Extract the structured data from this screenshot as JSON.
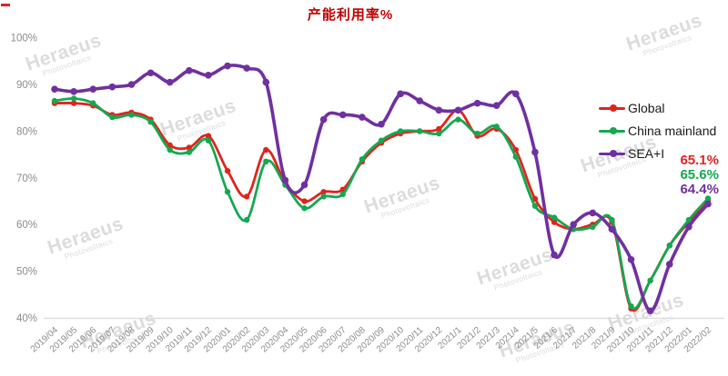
{
  "title": "产能利用率%",
  "colors": {
    "title": "#c00000",
    "global": "#e2231d",
    "china_mainland": "#14a850",
    "sea_i": "#7030a0",
    "axis_label": "#8c8c8c",
    "axis_line": "#d9d9d9",
    "watermark": "#c7c7c7"
  },
  "legend": [
    {
      "label": "Global"
    },
    {
      "label": "China mainland"
    },
    {
      "label": "SEA+I"
    }
  ],
  "end_labels": [
    {
      "text": "65.1%"
    },
    {
      "text": "65.6%"
    },
    {
      "text": "64.4%"
    }
  ],
  "y_axis": {
    "ticks": [
      "100%",
      "90%",
      "80%",
      "70%",
      "60%",
      "50%",
      "40%"
    ]
  },
  "watermark": {
    "line1": "Heraeus",
    "line2": "Photovoltaics"
  },
  "chart_data": {
    "type": "line",
    "title": "产能利用率%",
    "xlabel": "",
    "ylabel": "",
    "ylim": [
      40,
      100
    ],
    "y_tick_step": 10,
    "grid": false,
    "legend_position": "right",
    "markers": true,
    "smooth": true,
    "categories": [
      "2019/04",
      "2019/05",
      "2019/06",
      "2019/07",
      "2019/08",
      "2019/09",
      "2019/10",
      "2019/11",
      "2019/12",
      "2020/01",
      "2020/02",
      "2020/03",
      "2020/04",
      "2020/05",
      "2020/06",
      "2020/07",
      "2020/08",
      "2020/09",
      "2020/10",
      "2020/11",
      "2020/12",
      "2021/1",
      "2021/2",
      "2021/3",
      "2021/4",
      "2021/5",
      "2021/6",
      "2021/7",
      "2021/8",
      "2021/9",
      "2021/10",
      "2021/11",
      "2021/12",
      "2022/01",
      "2022/02"
    ],
    "series": [
      {
        "name": "Global",
        "color": "#e2231d",
        "end_label": "65.1%",
        "values": [
          86,
          86,
          85.5,
          83.5,
          84,
          82.5,
          77,
          76.5,
          79,
          71.5,
          66,
          76,
          69,
          65,
          67,
          67.5,
          73.5,
          77.5,
          79.5,
          80,
          80.5,
          84.5,
          79,
          80.5,
          76,
          65.5,
          60.5,
          59,
          60,
          60.5,
          42,
          48,
          55.5,
          60.5,
          65.1
        ]
      },
      {
        "name": "China mainland",
        "color": "#14a850",
        "end_label": "65.6%",
        "values": [
          86.5,
          87,
          86,
          83,
          83.5,
          82,
          76,
          75.5,
          78,
          67,
          61,
          73.5,
          68.5,
          63.5,
          66,
          66.5,
          74,
          78,
          80,
          80,
          79.5,
          82.5,
          79.5,
          81,
          74.5,
          64,
          61.5,
          59,
          59.5,
          61,
          42.5,
          48,
          55.5,
          61,
          65.6
        ]
      },
      {
        "name": "SEA+I",
        "color": "#7030a0",
        "end_label": "64.4%",
        "values": [
          89,
          88.5,
          89,
          89.5,
          90,
          92.5,
          90.5,
          93,
          92,
          94,
          93.5,
          90.5,
          69.5,
          68.5,
          82.5,
          83.5,
          83,
          81.5,
          88,
          86.5,
          84.5,
          84.5,
          86,
          85.5,
          88,
          75.5,
          53.5,
          60,
          62.5,
          59,
          52.5,
          41.5,
          51.5,
          59.5,
          64.4
        ]
      }
    ]
  }
}
